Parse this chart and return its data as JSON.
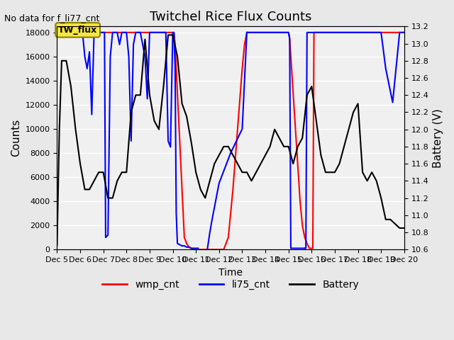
{
  "title": "Twitchel Rice Flux Counts",
  "xlabel": "Time",
  "ylabel_left": "Counts",
  "ylabel_right": "Battery (V)",
  "top_note": "No data for f_li77_cnt",
  "annotation": "TW_flux",
  "ylim_left": [
    0,
    18500
  ],
  "ylim_right": [
    10.6,
    13.2
  ],
  "yticks_left": [
    0,
    2000,
    4000,
    6000,
    8000,
    10000,
    12000,
    14000,
    16000,
    18000
  ],
  "yticks_right": [
    10.6,
    10.8,
    11.0,
    11.2,
    11.4,
    11.6,
    11.8,
    12.0,
    12.2,
    12.4,
    12.6,
    12.8,
    13.0,
    13.2
  ],
  "bg_color": "#e8e8e8",
  "plot_bg_color": "#f0f0f0",
  "wmp_color": "#ff0000",
  "li75_color": "#0000ff",
  "battery_color": "#000000",
  "legend_items": [
    "wmp_cnt",
    "li75_cnt",
    "Battery"
  ],
  "wmp_data_x": [
    5.0,
    5.1,
    5.2,
    5.3,
    5.4,
    5.5,
    5.6,
    5.7,
    5.8,
    5.9,
    6.0,
    6.1,
    6.2,
    6.3,
    6.4,
    6.5,
    6.6,
    6.7,
    6.8,
    6.9,
    7.0,
    7.1,
    7.2,
    7.3,
    7.4,
    7.5,
    7.6,
    7.7,
    7.8,
    7.9,
    8.0,
    8.1,
    8.2,
    8.3,
    8.4,
    8.5,
    8.6,
    8.7,
    8.8,
    8.9,
    9.0,
    9.1,
    9.2,
    9.3,
    9.4,
    9.5,
    9.6,
    9.7,
    9.8,
    9.9,
    10.0,
    10.05,
    10.1,
    10.15,
    10.2,
    10.25,
    10.3,
    10.35,
    10.4,
    10.45,
    10.5,
    10.6,
    10.7,
    10.8,
    10.9,
    11.0,
    11.1,
    11.2,
    11.3,
    11.4,
    11.5,
    11.6,
    11.7,
    11.8,
    11.9,
    12.0,
    12.2,
    12.4,
    12.6,
    12.8,
    13.0,
    13.1,
    13.2,
    13.3,
    13.4,
    13.5,
    13.6,
    13.7,
    13.8,
    13.9,
    14.0,
    14.05,
    14.1,
    14.2,
    14.3,
    14.4,
    14.5,
    14.6,
    14.7,
    14.8,
    14.9,
    15.0,
    15.05,
    15.1,
    15.2,
    15.3,
    15.4,
    15.5,
    15.6,
    15.7,
    15.8,
    15.9,
    16.0,
    16.05,
    16.1,
    16.2,
    16.3,
    16.4,
    16.5,
    16.6,
    16.7,
    16.8,
    16.9,
    17.0,
    17.1,
    17.2,
    17.3,
    17.4,
    17.5,
    17.6,
    17.7,
    17.8,
    17.9,
    18.0,
    18.05,
    18.1,
    18.2,
    18.3,
    18.4,
    18.5,
    18.6,
    18.7,
    18.8,
    18.9,
    19.0,
    19.1,
    19.2,
    19.3,
    19.5,
    19.8,
    20.0
  ],
  "wmp_data_y": [
    18000,
    18000,
    18000,
    18000,
    18000,
    18000,
    18000,
    18000,
    18000,
    18000,
    18000,
    18000,
    18000,
    18000,
    18000,
    18000,
    18000,
    18000,
    18000,
    18000,
    18000,
    18000,
    18000,
    18000,
    18000,
    18000,
    18000,
    18000,
    18000,
    18000,
    18000,
    18000,
    18000,
    18000,
    18000,
    18000,
    18000,
    18000,
    18000,
    18000,
    18000,
    18000,
    18000,
    18000,
    18000,
    18000,
    18000,
    18000,
    18000,
    18000,
    18000,
    18000,
    17000,
    15000,
    13000,
    11000,
    9000,
    7000,
    5000,
    3000,
    1000,
    500,
    200,
    100,
    0,
    0,
    0,
    0,
    0,
    0,
    0,
    0,
    0,
    0,
    0,
    0,
    0,
    1000,
    5000,
    10000,
    15000,
    17000,
    18000,
    18000,
    18000,
    18000,
    18000,
    18000,
    18000,
    18000,
    18000,
    18000,
    18000,
    18000,
    18000,
    18000,
    18000,
    18000,
    18000,
    18000,
    18000,
    18000,
    17500,
    16000,
    13000,
    10000,
    7000,
    4000,
    2000,
    1000,
    500,
    100,
    100,
    100,
    18000,
    18000,
    18000,
    18000,
    18000,
    18000,
    18000,
    18000,
    18000,
    18000,
    18000,
    18000,
    18000,
    18000,
    18000,
    18000,
    18000,
    18000,
    18000,
    18000,
    18000,
    18000,
    18000,
    18000,
    18000,
    18000,
    18000,
    18000,
    18000,
    18000,
    18000,
    18000,
    18000,
    18000,
    18000,
    18000,
    18000
  ],
  "li75_segments": [
    {
      "x": [
        5.0,
        5.05,
        5.1,
        5.2,
        5.3,
        5.4,
        5.5,
        5.6,
        5.7,
        5.8,
        5.9,
        6.0,
        6.1,
        6.2,
        6.3,
        6.4,
        6.5,
        6.6,
        6.7,
        6.8,
        6.9,
        7.0,
        7.05,
        7.1,
        7.2,
        7.3,
        7.4,
        7.5,
        7.6,
        7.7,
        7.8,
        7.9,
        8.0,
        8.1,
        8.2,
        8.3,
        8.4,
        8.5,
        8.6,
        8.7,
        8.8,
        8.9,
        9.0,
        9.1,
        9.2,
        9.3,
        9.4,
        9.5,
        9.6,
        9.7,
        9.8,
        9.9,
        10.0,
        10.05,
        10.1,
        10.15,
        10.2,
        10.3,
        10.4,
        10.5,
        10.6,
        10.7,
        10.8,
        10.9,
        11.0,
        11.05,
        11.1
      ],
      "y": [
        18000,
        18000,
        18000,
        18000,
        18000,
        18000,
        18000,
        18000,
        18000,
        18000,
        18000,
        18000,
        18000,
        16000,
        15000,
        16400,
        11200,
        18000,
        18000,
        18000,
        18000,
        18000,
        18000,
        1000,
        1200,
        16000,
        18000,
        18000,
        18000,
        17000,
        18000,
        18000,
        18000,
        16000,
        9000,
        17000,
        18000,
        18000,
        18000,
        17000,
        16000,
        12500,
        18000,
        18000,
        18000,
        18000,
        18000,
        18000,
        18000,
        18000,
        9000,
        8500,
        18000,
        18000,
        15200,
        3000,
        500,
        400,
        300,
        300,
        200,
        200,
        100,
        100,
        100,
        100,
        100
      ]
    },
    {
      "x": [
        11.5,
        11.6,
        11.7,
        11.8,
        11.9,
        12.0,
        12.5,
        13.0,
        13.2
      ],
      "y": [
        100,
        1400,
        2500,
        3500,
        4500,
        5500,
        8000,
        10000,
        18000
      ]
    },
    {
      "x": [
        13.2,
        13.3,
        13.4,
        13.5,
        13.6,
        13.7,
        13.8,
        13.9,
        14.0,
        14.05,
        14.1,
        14.2,
        14.3,
        14.4,
        14.5,
        14.6,
        14.7,
        14.8,
        14.9,
        15.0,
        15.05,
        15.1,
        15.2,
        15.3,
        15.4,
        15.5,
        15.6,
        15.7
      ],
      "y": [
        18000,
        18000,
        18000,
        18000,
        18000,
        18000,
        18000,
        18000,
        18000,
        18000,
        18000,
        18000,
        18000,
        18000,
        18000,
        18000,
        18000,
        18000,
        18000,
        18000,
        17500,
        100,
        100,
        100,
        100,
        100,
        100,
        100
      ]
    },
    {
      "x": [
        15.7,
        15.75,
        15.8,
        15.85,
        15.9,
        16.0,
        16.05,
        16.1,
        16.2,
        16.3,
        16.4,
        16.5,
        16.6,
        16.7,
        16.8,
        16.9,
        17.0,
        17.1,
        17.2,
        17.3,
        17.4,
        17.5,
        17.6,
        17.7,
        17.8,
        17.9,
        18.0,
        18.05,
        18.1,
        18.2,
        18.3,
        18.4,
        18.5,
        18.6,
        18.7,
        18.8,
        18.9,
        19.0,
        19.2,
        19.5,
        19.8,
        20.0
      ],
      "y": [
        100,
        100,
        18000,
        18000,
        18000,
        18000,
        18000,
        18000,
        18000,
        18000,
        18000,
        18000,
        18000,
        18000,
        18000,
        18000,
        18000,
        18000,
        18000,
        18000,
        18000,
        18000,
        18000,
        18000,
        18000,
        18000,
        18000,
        18000,
        18000,
        18000,
        18000,
        18000,
        18000,
        18000,
        18000,
        18000,
        18000,
        18000,
        15000,
        12200,
        18000,
        18000
      ]
    }
  ],
  "battery_x": [
    5.0,
    5.1,
    5.2,
    5.4,
    5.6,
    5.8,
    6.0,
    6.2,
    6.4,
    6.6,
    6.8,
    7.0,
    7.2,
    7.4,
    7.6,
    7.8,
    8.0,
    8.2,
    8.4,
    8.6,
    8.8,
    9.0,
    9.2,
    9.4,
    9.6,
    9.8,
    10.0,
    10.2,
    10.4,
    10.6,
    10.8,
    11.0,
    11.2,
    11.4,
    11.6,
    11.8,
    12.0,
    12.2,
    12.4,
    12.6,
    12.8,
    13.0,
    13.2,
    13.4,
    13.6,
    13.8,
    14.0,
    14.2,
    14.4,
    14.6,
    14.8,
    15.0,
    15.2,
    15.4,
    15.6,
    15.8,
    16.0,
    16.2,
    16.4,
    16.6,
    16.8,
    17.0,
    17.2,
    17.4,
    17.6,
    17.8,
    18.0,
    18.2,
    18.4,
    18.6,
    18.8,
    19.0,
    19.2,
    19.4,
    19.6,
    19.8,
    20.0
  ],
  "battery_y": [
    10.65,
    12.0,
    12.8,
    12.8,
    12.5,
    12.0,
    11.6,
    11.3,
    11.3,
    11.4,
    11.5,
    11.5,
    11.2,
    11.2,
    11.4,
    11.5,
    11.5,
    12.2,
    12.4,
    12.4,
    13.05,
    12.4,
    12.1,
    12.0,
    12.5,
    13.1,
    13.1,
    12.85,
    12.3,
    12.15,
    11.85,
    11.5,
    11.3,
    11.2,
    11.4,
    11.6,
    11.7,
    11.8,
    11.8,
    11.7,
    11.6,
    11.5,
    11.5,
    11.4,
    11.5,
    11.6,
    11.7,
    11.8,
    12.0,
    11.9,
    11.8,
    11.8,
    11.6,
    11.8,
    11.9,
    12.4,
    12.5,
    12.1,
    11.7,
    11.5,
    11.5,
    11.5,
    11.6,
    11.8,
    12.0,
    12.2,
    12.3,
    11.5,
    11.4,
    11.5,
    11.4,
    11.2,
    10.95,
    10.95,
    10.9,
    10.85,
    10.85
  ]
}
